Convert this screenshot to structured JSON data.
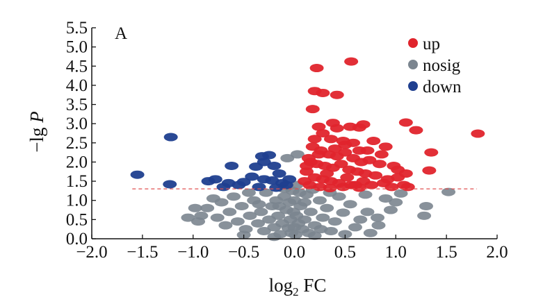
{
  "chart_data": {
    "type": "scatter",
    "panel_label": "A",
    "xlabel_main": "log",
    "xlabel_sub": "2",
    "xlabel_rest": " FC",
    "ylabel_prefix": "−lg ",
    "ylabel_italic": "P",
    "xlim": [
      -2.0,
      2.0
    ],
    "ylim": [
      0.0,
      5.5
    ],
    "x_ticks": [
      "−2.0",
      "−1.5",
      "−1.0",
      "−0.5",
      "0.0",
      "0.5",
      "1.0",
      "1.5",
      "2.0"
    ],
    "x_tick_values": [
      -2.0,
      -1.5,
      -1.0,
      -0.5,
      0.0,
      0.5,
      1.0,
      1.5,
      2.0
    ],
    "y_ticks": [
      "0.0",
      "0.5",
      "1.0",
      "1.5",
      "2.0",
      "2.5",
      "3.0",
      "3.5",
      "4.0",
      "4.5",
      "5.0",
      "5.5"
    ],
    "y_tick_values": [
      0.0,
      0.5,
      1.0,
      1.5,
      2.0,
      2.5,
      3.0,
      3.5,
      4.0,
      4.5,
      5.0,
      5.5
    ],
    "threshold": {
      "y": 1.3,
      "x_from": -1.6,
      "x_to": 1.8,
      "color": "#e05050"
    },
    "colors": {
      "up": "#e0242c",
      "nosig": "#7b858f",
      "down": "#1f3f8f"
    },
    "legend": [
      {
        "key": "up",
        "label": "up"
      },
      {
        "key": "nosig",
        "label": "nosig"
      },
      {
        "key": "down",
        "label": "down"
      }
    ],
    "series": [
      {
        "name": "down",
        "points": [
          [
            -1.22,
            2.65
          ],
          [
            -1.55,
            1.67
          ],
          [
            -1.23,
            1.42
          ],
          [
            -0.85,
            1.5
          ],
          [
            -0.78,
            1.55
          ],
          [
            -0.65,
            1.45
          ],
          [
            -0.62,
            1.9
          ],
          [
            -0.55,
            1.4
          ],
          [
            -0.5,
            1.48
          ],
          [
            -0.42,
            1.62
          ],
          [
            -0.38,
            1.88
          ],
          [
            -0.32,
            2.15
          ],
          [
            -0.25,
            2.18
          ],
          [
            -0.35,
            1.35
          ],
          [
            -0.3,
            1.55
          ],
          [
            -0.2,
            1.9
          ],
          [
            -0.15,
            1.7
          ],
          [
            -0.12,
            1.45
          ],
          [
            -0.08,
            1.4
          ],
          [
            -0.22,
            1.52
          ],
          [
            -0.3,
            2.0
          ],
          [
            -0.05,
            1.55
          ],
          [
            -0.18,
            1.33
          ],
          [
            -0.7,
            1.35
          ]
        ]
      },
      {
        "name": "up",
        "points": [
          [
            0.22,
            4.45
          ],
          [
            0.56,
            4.62
          ],
          [
            0.2,
            3.85
          ],
          [
            0.28,
            3.8
          ],
          [
            0.42,
            3.75
          ],
          [
            0.18,
            3.38
          ],
          [
            0.38,
            3.02
          ],
          [
            0.24,
            2.92
          ],
          [
            0.42,
            2.88
          ],
          [
            0.55,
            2.92
          ],
          [
            0.64,
            2.9
          ],
          [
            1.1,
            3.03
          ],
          [
            1.2,
            2.83
          ],
          [
            1.81,
            2.74
          ],
          [
            0.68,
            2.98
          ],
          [
            0.2,
            2.6
          ],
          [
            0.28,
            2.75
          ],
          [
            0.36,
            2.6
          ],
          [
            0.48,
            2.55
          ],
          [
            0.58,
            2.5
          ],
          [
            0.64,
            2.3
          ],
          [
            0.72,
            2.3
          ],
          [
            0.9,
            2.4
          ],
          [
            1.35,
            2.25
          ],
          [
            0.18,
            2.4
          ],
          [
            0.26,
            2.3
          ],
          [
            0.34,
            2.2
          ],
          [
            0.42,
            2.15
          ],
          [
            0.5,
            2.25
          ],
          [
            0.58,
            2.1
          ],
          [
            0.66,
            2.0
          ],
          [
            0.74,
            2.05
          ],
          [
            0.84,
            1.95
          ],
          [
            1.02,
            1.8
          ],
          [
            1.1,
            1.7
          ],
          [
            1.02,
            1.6
          ],
          [
            0.14,
            2.1
          ],
          [
            0.22,
            1.95
          ],
          [
            0.3,
            1.9
          ],
          [
            0.38,
            1.85
          ],
          [
            0.46,
            1.95
          ],
          [
            0.54,
            1.8
          ],
          [
            0.62,
            1.75
          ],
          [
            0.7,
            1.7
          ],
          [
            0.8,
            1.65
          ],
          [
            0.92,
            1.55
          ],
          [
            1.33,
            1.78
          ],
          [
            0.12,
            1.75
          ],
          [
            0.2,
            1.6
          ],
          [
            0.28,
            1.55
          ],
          [
            0.36,
            1.5
          ],
          [
            0.44,
            1.45
          ],
          [
            0.52,
            1.6
          ],
          [
            0.6,
            1.4
          ],
          [
            0.68,
            1.5
          ],
          [
            0.76,
            1.4
          ],
          [
            0.88,
            1.45
          ],
          [
            0.96,
            1.35
          ],
          [
            1.08,
            1.4
          ],
          [
            1.12,
            1.35
          ],
          [
            0.15,
            1.4
          ],
          [
            0.25,
            1.35
          ],
          [
            0.35,
            1.32
          ],
          [
            0.48,
            1.35
          ],
          [
            0.56,
            1.4
          ],
          [
            0.64,
            1.33
          ],
          [
            0.1,
            1.5
          ],
          [
            0.32,
            1.7
          ],
          [
            0.4,
            2.35
          ],
          [
            0.78,
            2.55
          ],
          [
            0.86,
            2.2
          ],
          [
            0.24,
            2.2
          ],
          [
            0.16,
            2.0
          ],
          [
            0.12,
            1.9
          ],
          [
            0.5,
            2.45
          ],
          [
            0.98,
            1.9
          ]
        ]
      },
      {
        "name": "nosig",
        "points": [
          [
            1.52,
            1.22
          ],
          [
            1.3,
            0.85
          ],
          [
            1.28,
            0.6
          ],
          [
            1.05,
            1.18
          ],
          [
            1.0,
            0.95
          ],
          [
            0.95,
            0.75
          ],
          [
            0.82,
            0.55
          ],
          [
            0.83,
            0.35
          ],
          [
            0.72,
            0.7
          ],
          [
            0.65,
            0.5
          ],
          [
            0.6,
            0.3
          ],
          [
            0.55,
            0.9
          ],
          [
            0.48,
            0.68
          ],
          [
            0.44,
            1.1
          ],
          [
            0.4,
            0.45
          ],
          [
            0.36,
            0.2
          ],
          [
            0.32,
            0.8
          ],
          [
            0.28,
            0.55
          ],
          [
            0.25,
            1.0
          ],
          [
            0.2,
            0.35
          ],
          [
            0.16,
            0.7
          ],
          [
            0.14,
            0.15
          ],
          [
            0.12,
            1.15
          ],
          [
            0.1,
            0.5
          ],
          [
            0.08,
            0.25
          ],
          [
            0.06,
            0.85
          ],
          [
            0.05,
            1.2
          ],
          [
            0.04,
            0.4
          ],
          [
            0.03,
            2.2
          ],
          [
            0.02,
            1.4
          ],
          [
            0.02,
            0.6
          ],
          [
            0.01,
            0.1
          ],
          [
            0.0,
            1.0
          ],
          [
            0.0,
            0.3
          ],
          [
            -0.01,
            0.7
          ],
          [
            -0.02,
            1.25
          ],
          [
            -0.03,
            0.15
          ],
          [
            -0.04,
            0.5
          ],
          [
            -0.05,
            0.95
          ],
          [
            -0.06,
            0.28
          ],
          [
            -0.07,
            2.1
          ],
          [
            -0.08,
            0.75
          ],
          [
            -0.1,
            1.1
          ],
          [
            -0.12,
            0.4
          ],
          [
            -0.14,
            0.12
          ],
          [
            -0.16,
            0.6
          ],
          [
            -0.18,
            1.0
          ],
          [
            -0.2,
            0.3
          ],
          [
            -0.22,
            0.85
          ],
          [
            -0.25,
            0.5
          ],
          [
            -0.28,
            1.2
          ],
          [
            -0.3,
            0.2
          ],
          [
            -0.33,
            0.7
          ],
          [
            -0.36,
            0.4
          ],
          [
            -0.4,
            1.0
          ],
          [
            -0.44,
            0.6
          ],
          [
            -0.48,
            0.25
          ],
          [
            -0.52,
            0.85
          ],
          [
            -0.56,
            0.45
          ],
          [
            -0.6,
            1.1
          ],
          [
            -0.64,
            0.7
          ],
          [
            -0.68,
            0.35
          ],
          [
            -0.72,
            0.95
          ],
          [
            -0.76,
            0.55
          ],
          [
            -0.8,
            1.05
          ],
          [
            -0.86,
            0.8
          ],
          [
            -0.92,
            0.6
          ],
          [
            -0.98,
            0.8
          ],
          [
            -1.05,
            0.55
          ],
          [
            -0.95,
            0.45
          ],
          [
            -0.5,
            0.1
          ],
          [
            -0.2,
            0.05
          ],
          [
            0.2,
            0.08
          ],
          [
            0.5,
            0.12
          ],
          [
            0.75,
            0.15
          ],
          [
            0.9,
            1.05
          ],
          [
            0.7,
            1.15
          ],
          [
            0.35,
            1.2
          ],
          [
            -0.1,
            1.3
          ],
          [
            -0.45,
            1.2
          ],
          [
            0.18,
            1.28
          ],
          [
            0.1,
            0.95
          ],
          [
            -0.15,
            0.85
          ],
          [
            0.26,
            0.25
          ],
          [
            -0.35,
            0.9
          ]
        ]
      }
    ]
  }
}
